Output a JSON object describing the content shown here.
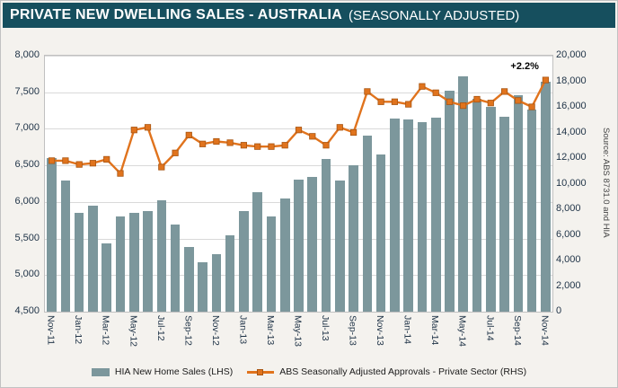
{
  "header": {
    "title_main": "PRIVATE NEW DWELLING SALES -  AUSTRALIA",
    "title_sub": "(SEASONALLY ADJUSTED)"
  },
  "source_note": "Source: ABS 8731.0 and HIA",
  "colors": {
    "header_bg": "#164f5e",
    "bar": "#7c979c",
    "line": "#e0731d",
    "grid": "#d9d9d9",
    "tick_text": "#1e3246"
  },
  "chart_data": {
    "type": "bar",
    "title": "PRIVATE NEW DWELLING SALES - AUSTRALIA (SEASONALLY ADJUSTED)",
    "grid": true,
    "legend_position": "bottom",
    "x_label_every": 2,
    "categories": [
      "Nov-11",
      "Dec-11",
      "Jan-12",
      "Feb-12",
      "Mar-12",
      "Apr-12",
      "May-12",
      "Jun-12",
      "Jul-12",
      "Aug-12",
      "Sep-12",
      "Oct-12",
      "Nov-12",
      "Dec-12",
      "Jan-13",
      "Feb-13",
      "Mar-13",
      "Apr-13",
      "May-13",
      "Jun-13",
      "Jul-13",
      "Aug-13",
      "Sep-13",
      "Oct-13",
      "Nov-13",
      "Dec-13",
      "Jan-14",
      "Feb-14",
      "Mar-14",
      "Apr-14",
      "May-14",
      "Jun-14",
      "Jul-14",
      "Aug-14",
      "Sep-14",
      "Oct-14",
      "Nov-14"
    ],
    "series": [
      {
        "name": "HIA New Home Sales (LHS)",
        "type": "bar",
        "axis": "left",
        "color": "#7c979c",
        "values": [
          6600,
          6290,
          5850,
          5950,
          5430,
          5800,
          5850,
          5870,
          6020,
          5690,
          5380,
          5170,
          5290,
          5540,
          5880,
          6130,
          5800,
          6050,
          6310,
          6340,
          6590,
          6290,
          6500,
          6910,
          6650,
          7140,
          7130,
          7090,
          7150,
          7520,
          7720,
          7410,
          7300,
          7160,
          7460,
          7260,
          7640
        ]
      },
      {
        "name": "ABS Seasonally Adjusted Approvals - Private Sector (RHS)",
        "type": "line",
        "axis": "right",
        "color": "#e0731d",
        "values": [
          11800,
          11800,
          11500,
          11600,
          11900,
          10800,
          14200,
          14400,
          11300,
          12400,
          13800,
          13100,
          13300,
          13200,
          13000,
          12900,
          12900,
          13000,
          14200,
          13700,
          13000,
          14400,
          14000,
          17200,
          16400,
          16400,
          16200,
          17600,
          17100,
          16400,
          16100,
          16600,
          16300,
          17200,
          16500,
          16000,
          18100
        ]
      }
    ],
    "left_axis": {
      "min": 4500,
      "max": 8000,
      "step": 500,
      "tick_labels": [
        "8,000",
        "7,500",
        "7,000",
        "6,500",
        "6,000",
        "5,500",
        "5,000",
        "4,500"
      ]
    },
    "right_axis": {
      "min": 0,
      "max": 20000,
      "step": 2000,
      "tick_labels": [
        "20,000",
        "18,000",
        "16,000",
        "14,000",
        "12,000",
        "10,000",
        "8,000",
        "6,000",
        "4,000",
        "2,000",
        "0"
      ]
    },
    "annotation": {
      "text": "+2.2%",
      "index": 36
    }
  }
}
